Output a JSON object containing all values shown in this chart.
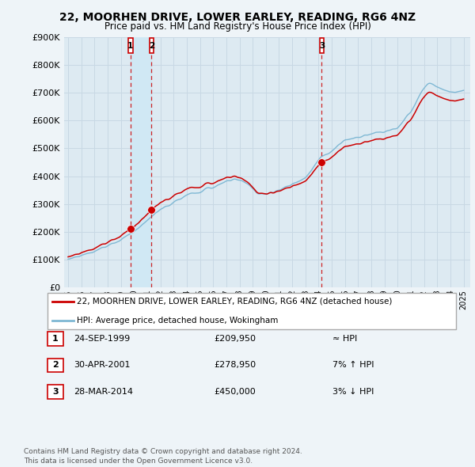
{
  "title": "22, MOORHEN DRIVE, LOWER EARLEY, READING, RG6 4NZ",
  "subtitle": "Price paid vs. HM Land Registry's House Price Index (HPI)",
  "legend_label1": "22, MOORHEN DRIVE, LOWER EARLEY, READING, RG6 4NZ (detached house)",
  "legend_label2": "HPI: Average price, detached house, Wokingham",
  "transactions": [
    {
      "num": 1,
      "date": 1999.73,
      "price": 209950,
      "label": "24-SEP-1999",
      "price_str": "£209,950",
      "rel": "≈ HPI"
    },
    {
      "num": 2,
      "date": 2001.33,
      "price": 278950,
      "label": "30-APR-2001",
      "price_str": "£278,950",
      "rel": "7% ↑ HPI"
    },
    {
      "num": 3,
      "date": 2014.24,
      "price": 450000,
      "label": "28-MAR-2014",
      "price_str": "£450,000",
      "rel": "3% ↓ HPI"
    }
  ],
  "hpi_color": "#7fb8d4",
  "price_color": "#cc0000",
  "vline_color": "#cc0000",
  "bg_color": "#eef4f8",
  "chart_bg": "#ddeaf2",
  "grid_color": "#c8d8e4",
  "shade_color": "#d0e8f4",
  "ylim": [
    0,
    900000
  ],
  "yticks": [
    0,
    100000,
    200000,
    300000,
    400000,
    500000,
    600000,
    700000,
    800000,
    900000
  ],
  "footer": "Contains HM Land Registry data © Crown copyright and database right 2024.\nThis data is licensed under the Open Government Licence v3.0.",
  "xstart": 1995,
  "xend": 2025
}
